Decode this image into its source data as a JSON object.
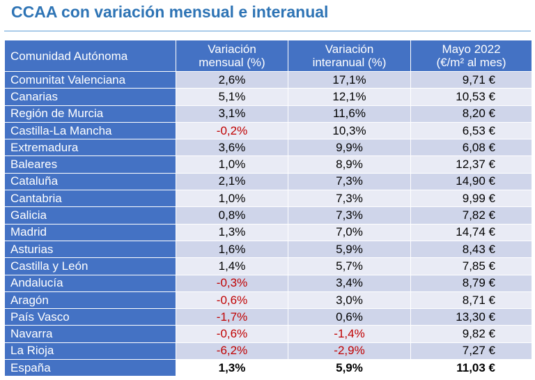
{
  "title": "CCAA con variación mensual e interanual",
  "table": {
    "headers": {
      "col1": "Comunidad Autónoma",
      "col2_line1": "Variación",
      "col2_line2": "mensual (%)",
      "col3_line1": "Variación",
      "col3_line2": "interanual (%)",
      "col4_line1": "Mayo 2022",
      "col4_line2": "(€/m² al mes)"
    },
    "rows": [
      {
        "name": "Comunitat Valenciana",
        "mensual": "2,6%",
        "interanual": "17,1%",
        "precio": "9,71 €"
      },
      {
        "name": "Canarias",
        "mensual": "5,1%",
        "interanual": "12,1%",
        "precio": "10,53 €"
      },
      {
        "name": "Región de Murcia",
        "mensual": "3,1%",
        "interanual": "11,6%",
        "precio": "8,20 €"
      },
      {
        "name": "Castilla-La Mancha",
        "mensual": "-0,2%",
        "interanual": "10,3%",
        "precio": "6,53 €"
      },
      {
        "name": "Extremadura",
        "mensual": "3,6%",
        "interanual": "9,9%",
        "precio": "6,08 €"
      },
      {
        "name": "Baleares",
        "mensual": "1,0%",
        "interanual": "8,9%",
        "precio": "12,37 €"
      },
      {
        "name": "Cataluña",
        "mensual": "2,1%",
        "interanual": "7,3%",
        "precio": "14,90 €"
      },
      {
        "name": "Cantabria",
        "mensual": "1,0%",
        "interanual": "7,3%",
        "precio": "9,99 €"
      },
      {
        "name": "Galicia",
        "mensual": "0,8%",
        "interanual": "7,3%",
        "precio": "7,82 €"
      },
      {
        "name": "Madrid",
        "mensual": "1,3%",
        "interanual": "7,0%",
        "precio": "14,74 €"
      },
      {
        "name": "Asturias",
        "mensual": "1,6%",
        "interanual": "5,9%",
        "precio": "8,43 €"
      },
      {
        "name": "Castilla y León",
        "mensual": "1,4%",
        "interanual": "5,7%",
        "precio": "7,85 €"
      },
      {
        "name": "Andalucía",
        "mensual": "-0,3%",
        "interanual": "3,4%",
        "precio": "8,79 €"
      },
      {
        "name": "Aragón",
        "mensual": "-0,6%",
        "interanual": "3,0%",
        "precio": "8,71 €"
      },
      {
        "name": "País Vasco",
        "mensual": "-1,7%",
        "interanual": "0,6%",
        "precio": "13,30 €"
      },
      {
        "name": "Navarra",
        "mensual": "-0,6%",
        "interanual": "-1,4%",
        "precio": "9,82 €"
      },
      {
        "name": "La Rioja",
        "mensual": "-6,2%",
        "interanual": "-2,9%",
        "precio": "7,27 €"
      }
    ],
    "total": {
      "name": "España",
      "mensual": "1,3%",
      "interanual": "5,9%",
      "precio": "11,03 €"
    }
  },
  "colors": {
    "header_bg": "#4472c4",
    "row_odd_bg": "#cfd5ea",
    "row_even_bg": "#e9ebf5",
    "negative_text": "#c00000",
    "title_text": "#2e74b5"
  }
}
